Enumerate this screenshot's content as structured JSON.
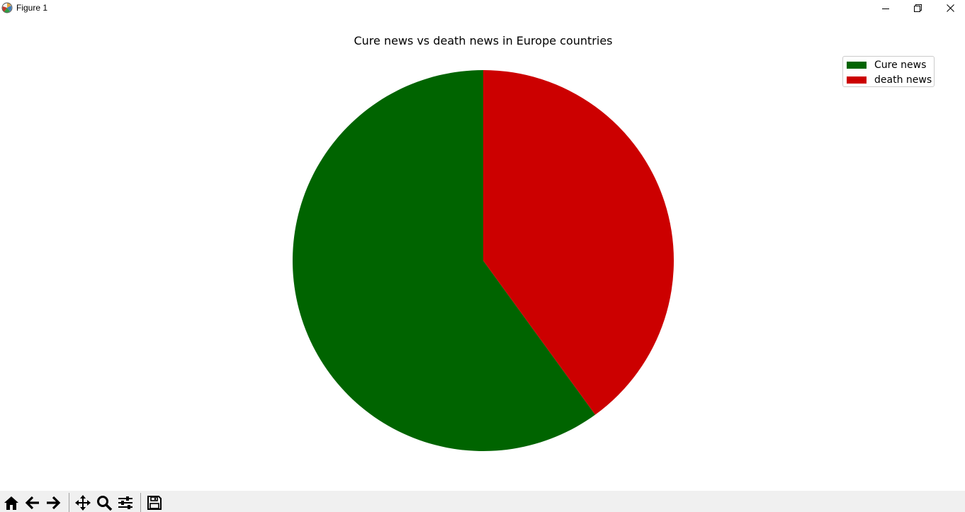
{
  "window": {
    "title": "Figure 1",
    "controls": [
      "minimize-icon",
      "restore-icon",
      "close-icon"
    ]
  },
  "chart_data": {
    "type": "pie",
    "title": "Cure news vs death news in Europe countries",
    "labels": [
      "Cure news",
      "death news"
    ],
    "values": [
      60,
      40
    ],
    "colors": [
      "#006400",
      "#cc0000"
    ],
    "startangle": 90,
    "direction": "counterclockwise",
    "legend_loc": "upper-right"
  },
  "toolbar": {
    "buttons": [
      "home-icon",
      "back-icon",
      "forward-icon",
      "pan-icon",
      "zoom-icon",
      "configure-subplots-icon",
      "save-icon"
    ]
  }
}
